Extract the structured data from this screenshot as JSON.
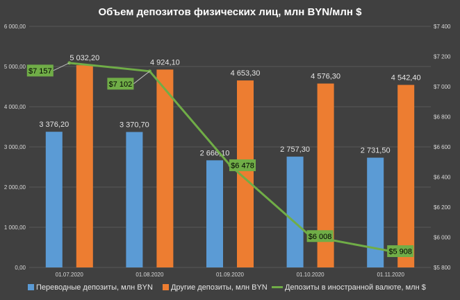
{
  "chart_data": {
    "type": "bar",
    "title": "Объем депозитов физических лиц, млн BYN/млн $",
    "categories": [
      "01.07.2020",
      "01.08.2020",
      "01.09.2020",
      "01.10.2020",
      "01.11.2020"
    ],
    "series": [
      {
        "name": "Переводные депозиты, млн BYN",
        "type": "bar",
        "axis": "left",
        "color": "#5b9bd5",
        "values": [
          3376.2,
          3370.7,
          2666.1,
          2757.3,
          2731.5
        ],
        "labels": [
          "3 376,20",
          "3 370,70",
          "2 666,10",
          "2 757,30",
          "2 731,50"
        ]
      },
      {
        "name": "Другие депозиты, млн BYN",
        "type": "bar",
        "axis": "left",
        "color": "#ed7d31",
        "values": [
          5032.2,
          4924.1,
          4653.3,
          4576.3,
          4542.4
        ],
        "labels": [
          "5 032,20",
          "4 924,10",
          "4 653,30",
          "4 576,30",
          "4 542,40"
        ]
      },
      {
        "name": "Депозиты в иностранной валюте, млн $",
        "type": "line",
        "axis": "right",
        "color": "#70ad47",
        "values": [
          7157,
          7102,
          6478,
          6008,
          5908
        ],
        "labels": [
          "$7 157",
          "$7 102",
          "$6 478",
          "$6 008",
          "$5 908"
        ]
      }
    ],
    "y_left": {
      "min": 0,
      "max": 6000,
      "ticks": [
        0,
        1000,
        2000,
        3000,
        4000,
        5000,
        6000
      ],
      "tick_labels": [
        "0,00",
        "1 000,00",
        "2 000,00",
        "3 000,00",
        "4 000,00",
        "5 000,00",
        "6 000,00"
      ]
    },
    "y_right": {
      "min": 5800,
      "max": 7400,
      "ticks": [
        5800,
        6000,
        6200,
        6400,
        6600,
        6800,
        7000,
        7200,
        7400
      ],
      "tick_labels": [
        "$5 800",
        "$6 000",
        "$6 200",
        "$6 400",
        "$6 600",
        "$6 800",
        "$7 000",
        "$7 200",
        "$7 400"
      ]
    },
    "grid": true,
    "legend": "bottom"
  }
}
